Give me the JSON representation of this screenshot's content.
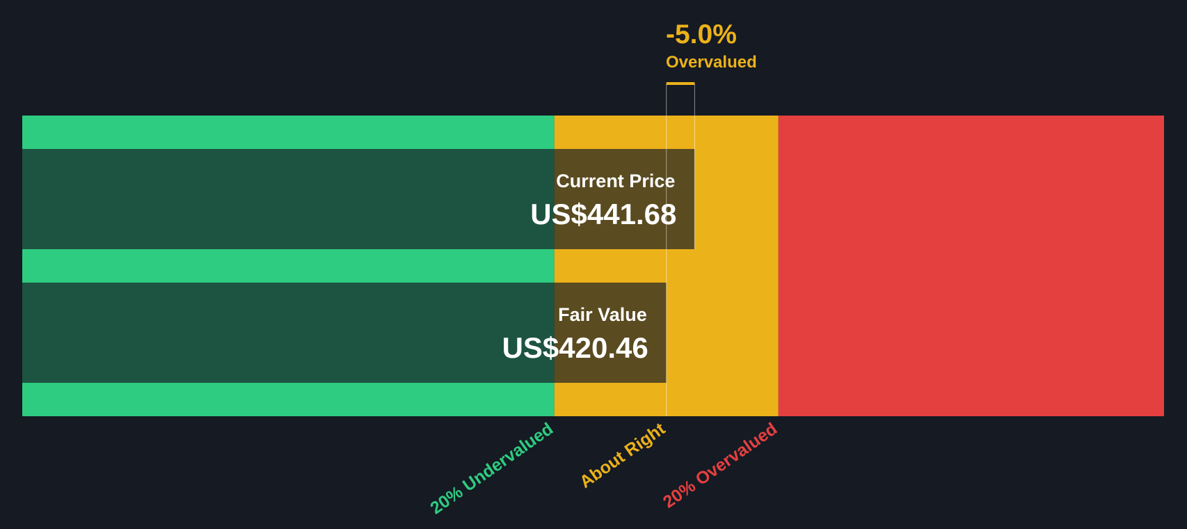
{
  "chart_data": {
    "type": "valuation-bar",
    "categories": [
      "Current Price",
      "Fair Value"
    ],
    "values": [
      441.68,
      420.46
    ],
    "value_labels": [
      "US$441.68",
      "US$420.46"
    ],
    "xlim": [
      -63,
      794
    ],
    "xticks": [
      {
        "value": 336.37,
        "label": "20% Undervalued"
      },
      {
        "value": 420.46,
        "label": "About Right"
      },
      {
        "value": 504.55,
        "label": "20% Overvalued"
      }
    ],
    "zone_colors": [
      "#2ecc80",
      "#ecb21a",
      "#e54040"
    ],
    "bar_color": "#151a23",
    "annotation_value": "-5.0%",
    "annotation_text": "Overvalued",
    "annotation_color": "#ecb21a"
  }
}
